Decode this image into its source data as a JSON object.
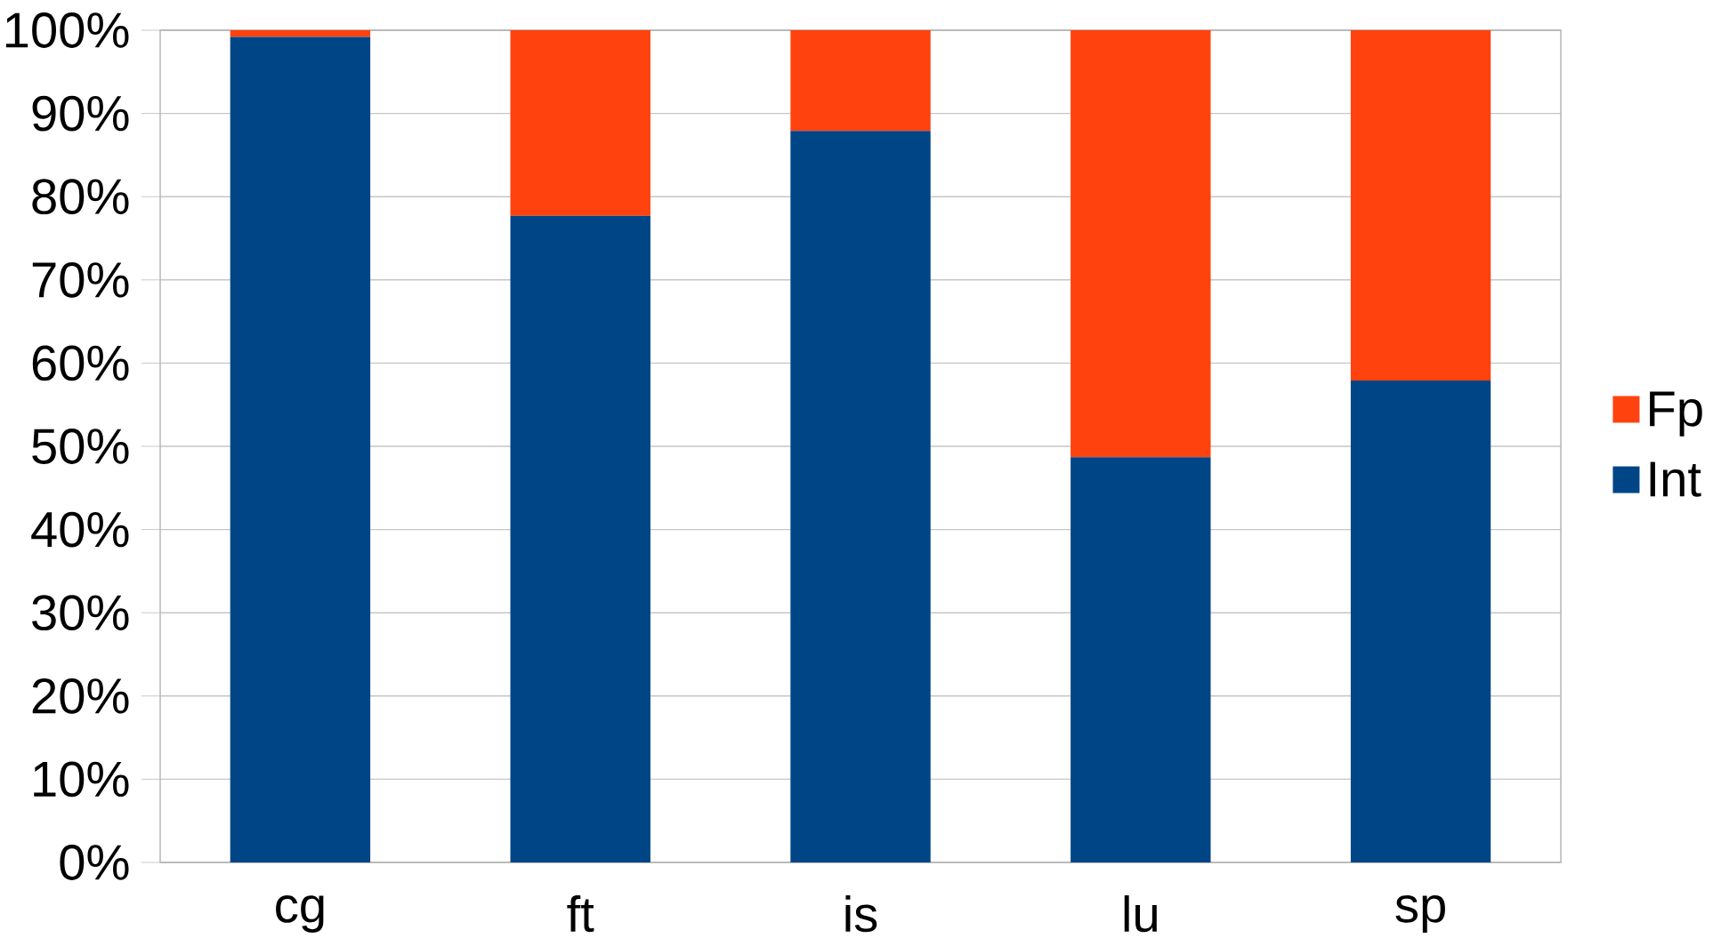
{
  "chart_data": {
    "type": "bar",
    "stacked": true,
    "categories": [
      "cg",
      "ft",
      "is",
      "lu",
      "sp"
    ],
    "series": [
      {
        "name": "Int",
        "color": "#004586",
        "values": [
          99.2,
          77.7,
          87.9,
          48.7,
          57.9
        ]
      },
      {
        "name": "Fp",
        "color": "#ff420e",
        "values": [
          0.8,
          22.3,
          12.1,
          51.3,
          42.1
        ]
      }
    ],
    "ylim": [
      0,
      100
    ],
    "yticks": [
      {
        "value": 0,
        "label": "0%"
      },
      {
        "value": 10,
        "label": "10%"
      },
      {
        "value": 20,
        "label": "20%"
      },
      {
        "value": 30,
        "label": "30%"
      },
      {
        "value": 40,
        "label": "40%"
      },
      {
        "value": 50,
        "label": "50%"
      },
      {
        "value": 60,
        "label": "60%"
      },
      {
        "value": 70,
        "label": "70%"
      },
      {
        "value": 80,
        "label": "80%"
      },
      {
        "value": 90,
        "label": "90%"
      },
      {
        "value": 100,
        "label": "100%"
      }
    ],
    "grid": "y",
    "legend": "right"
  }
}
